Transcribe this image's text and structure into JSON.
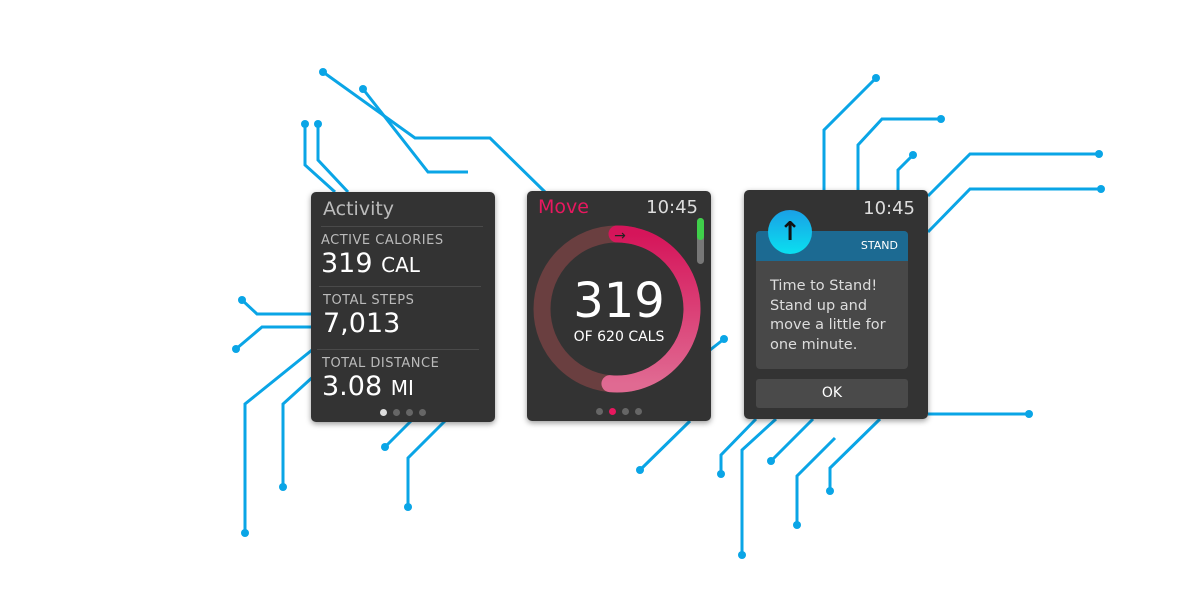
{
  "colors": {
    "circuit": "#0aa5e6",
    "move": "#e8185f",
    "stand_header": "#1c6a92",
    "scroll_green": "#3fcf4a"
  },
  "activity": {
    "title": "Activity",
    "stats": [
      {
        "label": "ACTIVE CALORIES",
        "value": "319",
        "unit": "CAL"
      },
      {
        "label": "TOTAL STEPS",
        "value": "7,013",
        "unit": ""
      },
      {
        "label": "TOTAL DISTANCE",
        "value": "3.08",
        "unit": "MI"
      }
    ],
    "page_index": 0,
    "page_count": 4
  },
  "move": {
    "title": "Move",
    "time": "10:45",
    "value": "319",
    "goal_text": "OF 620 CALS",
    "progress": 0.515,
    "arrow_icon": "arrow-right-icon",
    "page_index": 1,
    "page_count": 4
  },
  "stand": {
    "time": "10:45",
    "icon": "arrow-up-icon",
    "app_label": "STAND",
    "heading": "Time to Stand!",
    "message": "Stand up and move a little for one minute.",
    "ok_label": "OK"
  }
}
